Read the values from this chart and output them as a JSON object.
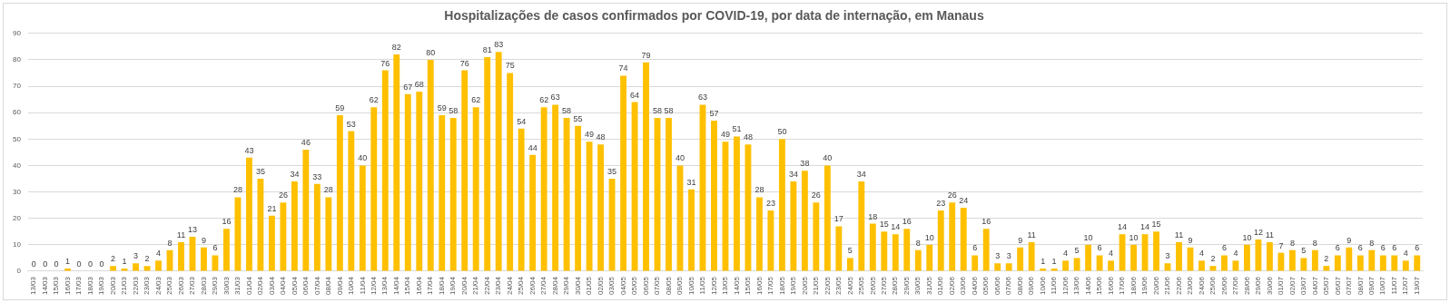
{
  "chart_data": {
    "type": "bar",
    "title": "Hospitalizações de casos confirmados por COVID-19, por data de internação, em Manaus",
    "categories": [
      "13/03",
      "14/03",
      "15/03",
      "16/03",
      "17/03",
      "18/03",
      "19/03",
      "20/03",
      "21/03",
      "22/03",
      "23/03",
      "24/03",
      "25/03",
      "26/03",
      "27/03",
      "28/03",
      "29/03",
      "30/03",
      "31/03",
      "01/04",
      "02/04",
      "03/04",
      "04/04",
      "05/04",
      "06/04",
      "07/04",
      "08/04",
      "09/04",
      "10/04",
      "11/04",
      "12/04",
      "13/04",
      "14/04",
      "15/04",
      "16/04",
      "17/04",
      "18/04",
      "19/04",
      "20/04",
      "21/04",
      "22/04",
      "23/04",
      "24/04",
      "25/04",
      "26/04",
      "27/04",
      "28/04",
      "29/04",
      "30/04",
      "01/05",
      "02/05",
      "03/05",
      "04/05",
      "05/05",
      "06/05",
      "07/05",
      "08/05",
      "09/05",
      "10/05",
      "11/05",
      "12/05",
      "13/05",
      "14/05",
      "15/05",
      "16/05",
      "17/05",
      "18/05",
      "19/05",
      "20/05",
      "21/05",
      "22/05",
      "23/05",
      "24/05",
      "25/05",
      "26/05",
      "27/05",
      "28/05",
      "29/05",
      "30/05",
      "31/05",
      "01/06",
      "02/06",
      "03/06",
      "04/06",
      "05/06",
      "06/06",
      "07/06",
      "08/06",
      "09/06",
      "10/06",
      "11/06",
      "12/06",
      "13/06",
      "14/06",
      "15/06",
      "16/06",
      "17/06",
      "18/06",
      "19/06",
      "20/06",
      "21/06",
      "22/06",
      "23/06",
      "24/06",
      "25/06",
      "26/06",
      "27/06",
      "28/06",
      "29/06",
      "30/06",
      "01/07",
      "02/07",
      "03/07",
      "04/07",
      "05/07",
      "06/07",
      "07/07",
      "08/07",
      "09/07",
      "10/07",
      "11/07",
      "12/07",
      "13/07"
    ],
    "values": [
      0,
      0,
      0,
      1,
      0,
      0,
      0,
      2,
      1,
      3,
      2,
      4,
      8,
      11,
      13,
      9,
      6,
      16,
      28,
      43,
      35,
      21,
      26,
      34,
      46,
      33,
      28,
      59,
      53,
      40,
      62,
      76,
      82,
      67,
      68,
      80,
      59,
      58,
      76,
      62,
      81,
      83,
      75,
      54,
      44,
      62,
      63,
      58,
      55,
      49,
      48,
      35,
      74,
      64,
      79,
      58,
      58,
      40,
      31,
      63,
      57,
      49,
      51,
      48,
      28,
      23,
      50,
      34,
      38,
      26,
      40,
      17,
      5,
      34,
      18,
      15,
      14,
      16,
      8,
      10,
      23,
      26,
      24,
      6,
      16,
      3,
      3,
      9,
      11,
      1,
      1,
      4,
      5,
      10,
      6,
      4,
      14,
      10,
      14,
      15,
      3,
      11,
      9,
      4,
      2,
      6,
      4,
      10,
      12,
      11,
      7,
      8,
      5,
      8,
      2,
      6,
      9,
      6,
      8,
      6,
      6,
      4,
      6
    ],
    "color": "#ffc000",
    "ylim": [
      0,
      90
    ],
    "yticks": [
      0,
      10,
      20,
      30,
      40,
      50,
      60,
      70,
      80,
      90
    ],
    "grid": "y",
    "data_labels": true
  }
}
